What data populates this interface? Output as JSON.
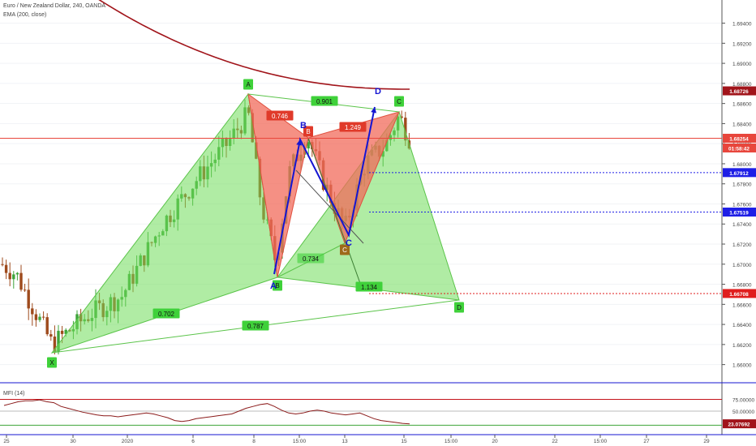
{
  "header": {
    "symbol": "Euro / New Zealand Dollar, 240, OANDA",
    "indicator": "EMA (200, close)"
  },
  "mfi_panel": {
    "label": "MFI (14)",
    "upper_level": "75.00000",
    "mid_level": "50.00000",
    "current_value": "23.07692"
  },
  "colors": {
    "candle_up": "#3ea43a",
    "candle_down": "#9e4a1c",
    "ema": "#a1141a",
    "pattern_fill_green": "#6fdc5a",
    "pattern_fill_red": "#f26b5b",
    "blue_arrow": "#1515d2",
    "dotted_blue": "#1e1ee6",
    "dotted_red": "#e01e1e"
  },
  "chart_data": {
    "type": "candlestick",
    "price_axis": {
      "ticks": [
        "1.69400",
        "1.69200",
        "1.69000",
        "1.68800",
        "1.68600",
        "1.68400",
        "1.68200",
        "1.68000",
        "1.67800",
        "1.67600",
        "1.67400",
        "1.67200",
        "1.67000",
        "1.66800",
        "1.66600",
        "1.66400",
        "1.66200",
        "1.66000"
      ],
      "range": [
        1.659,
        1.6955
      ]
    },
    "time_axis": {
      "ticks": [
        "25",
        "30",
        "2020",
        "6",
        "8",
        "15:00",
        "13",
        "15",
        "15:00",
        "20",
        "22",
        "15:00",
        "27",
        "29"
      ]
    },
    "price_labels": [
      {
        "value": "1.68726",
        "bg": "#a1141a"
      },
      {
        "value": "1.68254",
        "bg": "#e8463c"
      },
      {
        "value": "01:58:42",
        "bg": "#e8463c"
      },
      {
        "value": "1.67912",
        "bg": "#1e1ee6"
      },
      {
        "value": "1.67519",
        "bg": "#1e1ee6"
      },
      {
        "value": "1.66708",
        "bg": "#e01e1e"
      }
    ],
    "horizontal_lines": [
      {
        "price": 1.68254,
        "style": "solid",
        "color": "#e8463c"
      },
      {
        "price": 1.67912,
        "style": "dotted",
        "color": "#1e1ee6"
      },
      {
        "price": 1.67519,
        "style": "dotted",
        "color": "#1e1ee6"
      },
      {
        "price": 1.66708,
        "style": "dotted",
        "color": "#e01e1e"
      }
    ],
    "pattern_points": [
      {
        "label": "X",
        "color": "green"
      },
      {
        "label": "A",
        "color": "green"
      },
      {
        "label": "B",
        "color": "green"
      },
      {
        "label": "C",
        "color": "green"
      },
      {
        "label": "D",
        "color": "green"
      }
    ],
    "pattern_ratios": [
      "0.702",
      "0.787",
      "0.734",
      "1.134",
      "0.901"
    ],
    "red_pattern_points": [
      "B",
      "C"
    ],
    "red_pattern_ratios": [
      "0.746",
      "1.249"
    ],
    "blue_labels": [
      "A",
      "B",
      "C",
      "D"
    ],
    "mfi": {
      "upper": 75,
      "mid": 50,
      "current": 23.07692
    }
  }
}
